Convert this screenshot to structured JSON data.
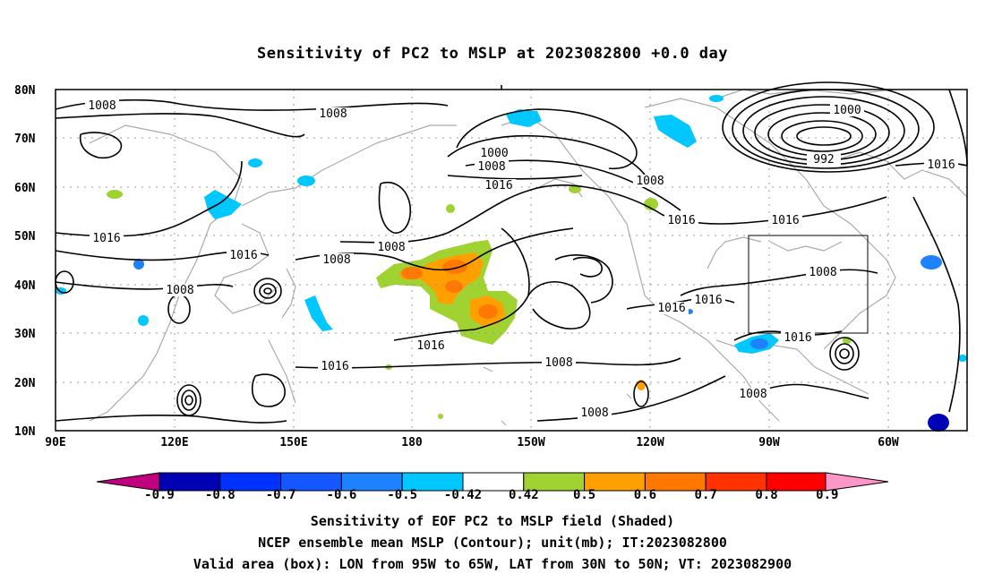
{
  "title": "Sensitivity of PC2 to MSLP at 2023082800 +0.0 day",
  "axes": {
    "lat_labels": [
      "80N",
      "70N",
      "60N",
      "50N",
      "40N",
      "30N",
      "20N",
      "10N"
    ],
    "lon_labels": [
      "90E",
      "120E",
      "150E",
      "180",
      "150W",
      "120W",
      "90W",
      "60W"
    ]
  },
  "contours": {
    "levels_labeled": [
      "1008",
      "1008",
      "1000",
      "1008",
      "1016",
      "1008",
      "1000",
      "992",
      "1016",
      "1016",
      "1016",
      "1008",
      "1008",
      "1016",
      "1016",
      "1008",
      "1016",
      "1016",
      "1008",
      "1016",
      "1016",
      "1016",
      "1008",
      "1008",
      "1008"
    ],
    "color": "#000000"
  },
  "valid_box": {
    "lon_range": "95W to 65W",
    "lat_range": "30N to 50N"
  },
  "colorbar": {
    "labels": [
      "-0.9",
      "-0.8",
      "-0.7",
      "-0.6",
      "-0.5",
      "-0.42",
      "0.42",
      "0.5",
      "0.6",
      "0.7",
      "0.8",
      "0.9"
    ],
    "colors": [
      "#c0007f",
      "#0000b4",
      "#0032ff",
      "#1456ff",
      "#1e82ff",
      "#00c8ff",
      "#ffffff",
      "#a0d232",
      "#ffa000",
      "#ff7800",
      "#ff3200",
      "#ff0000",
      "#ff96c8"
    ]
  },
  "shading_colors": {
    "negative": "#00c8ff",
    "negative_strong": "#1e82ff",
    "negative_max": "#0000b4",
    "pos_low": "#a0d232",
    "pos_mid": "#ffa000",
    "pos_high": "#ff7800"
  },
  "coast_color": "#aaaaaa",
  "footer": {
    "line1": "Sensitivity of EOF PC2 to MSLP field (Shaded)",
    "line2": "NCEP ensemble mean MSLP (Contour); unit(mb); IT:2023082800",
    "line3": "Valid area (box): LON from 95W to 65W, LAT from 30N to 50N; VT: 2023082900"
  }
}
